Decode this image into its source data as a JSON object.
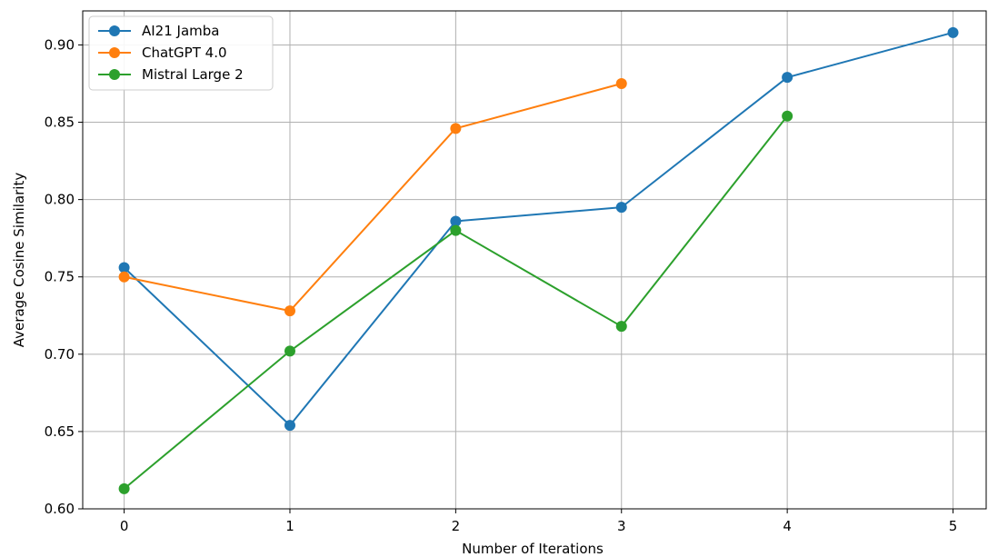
{
  "chart_data": {
    "type": "line",
    "title": "",
    "xlabel": "Number of Iterations",
    "ylabel": "Average Cosine Similarity",
    "x_ticks": [
      "0",
      "1",
      "2",
      "3",
      "4",
      "5"
    ],
    "y_ticks": [
      "0.60",
      "0.65",
      "0.70",
      "0.75",
      "0.80",
      "0.85",
      "0.90"
    ],
    "xlim": [
      -0.25,
      5.2
    ],
    "ylim": [
      0.6,
      0.922
    ],
    "grid": true,
    "legend_position": "top-left",
    "series": [
      {
        "name": "AI21 Jamba",
        "color": "#1f77b4",
        "marker": "circle",
        "x": [
          0,
          1,
          2,
          3,
          4,
          5
        ],
        "y": [
          0.756,
          0.654,
          0.786,
          0.795,
          0.879,
          0.908
        ]
      },
      {
        "name": "ChatGPT 4.0",
        "color": "#ff7f0e",
        "marker": "circle",
        "x": [
          0,
          1,
          2,
          3
        ],
        "y": [
          0.75,
          0.728,
          0.846,
          0.875
        ]
      },
      {
        "name": "Mistral Large 2",
        "color": "#2ca02c",
        "marker": "circle",
        "x": [
          0,
          1,
          2,
          3,
          4
        ],
        "y": [
          0.613,
          0.702,
          0.78,
          0.718,
          0.854
        ]
      }
    ]
  }
}
